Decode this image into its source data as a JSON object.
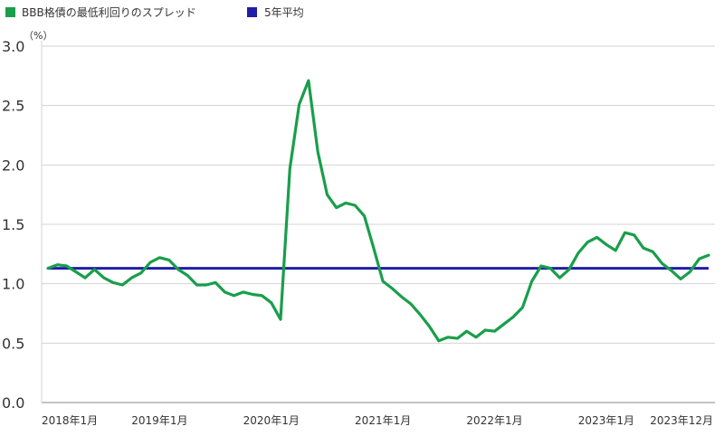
{
  "chart_data": {
    "type": "line",
    "unit_label": "（%）",
    "ylim": [
      0,
      3.0
    ],
    "y_ticks": [
      "0.0",
      "0.5",
      "1.0",
      "1.5",
      "2.0",
      "2.5",
      "3.0"
    ],
    "x_tick_labels": [
      "2018年1月",
      "2019年1月",
      "2020年1月",
      "2021年1月",
      "2022年1月",
      "2023年1月",
      "2023年12月"
    ],
    "x_tick_months": [
      0,
      12,
      24,
      36,
      48,
      60,
      71
    ],
    "x_range": [
      0,
      71
    ],
    "grid": "horizontal",
    "legend_placement": "top-left",
    "series": [
      {
        "name": "BBB格債の最低利回りのスプレッド",
        "color": "#1a9e4b",
        "values": [
          1.13,
          1.16,
          1.15,
          1.1,
          1.05,
          1.12,
          1.05,
          1.01,
          0.99,
          1.05,
          1.09,
          1.18,
          1.22,
          1.2,
          1.12,
          1.07,
          0.99,
          0.99,
          1.01,
          0.93,
          0.9,
          0.93,
          0.91,
          0.9,
          0.84,
          0.7,
          1.97,
          2.51,
          2.71,
          2.11,
          1.75,
          1.64,
          1.68,
          1.66,
          1.57,
          1.3,
          1.02,
          0.96,
          0.89,
          0.83,
          0.74,
          0.64,
          0.52,
          0.55,
          0.54,
          0.6,
          0.55,
          0.61,
          0.6,
          0.66,
          0.72,
          0.8,
          1.02,
          1.15,
          1.13,
          1.05,
          1.12,
          1.26,
          1.35,
          1.39,
          1.33,
          1.28,
          1.43,
          1.41,
          1.3,
          1.27,
          1.17,
          1.11,
          1.04,
          1.1,
          1.21,
          1.24
        ]
      },
      {
        "name": "5年平均",
        "color": "#1f1fa8",
        "constant": 1.13
      }
    ]
  }
}
